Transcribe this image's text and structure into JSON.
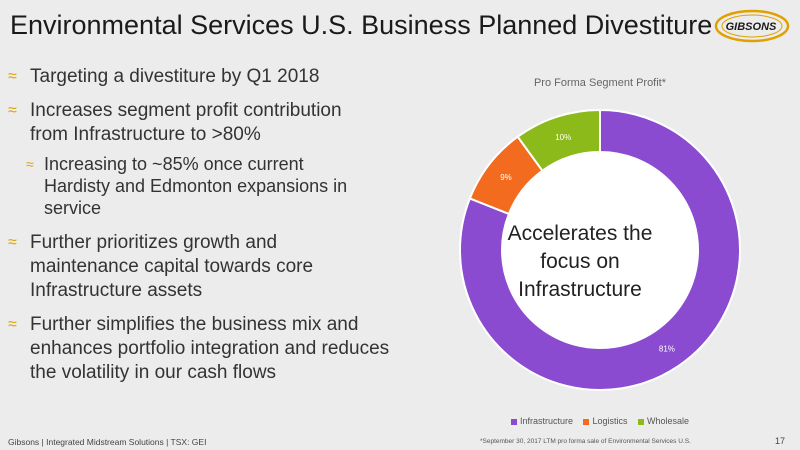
{
  "header": {
    "title": "Environmental Services U.S. Business Planned Divestiture",
    "logo_text": "GIBSONS"
  },
  "bullets": [
    {
      "level": 1,
      "marker": "≈",
      "text": "Targeting a divestiture by Q1 2018"
    },
    {
      "level": 1,
      "marker": "≈",
      "text": "Increases segment profit contribution from Infrastructure to >80%"
    },
    {
      "level": 2,
      "marker": "≈",
      "text": "Increasing to ~85% once current Hardisty and Edmonton expansions in service"
    },
    {
      "level": 1,
      "marker": "≈",
      "text": "Further prioritizes growth and maintenance capital towards core Infrastructure assets"
    },
    {
      "level": 1,
      "marker": "≈",
      "text": "Further simplifies the business mix and enhances portfolio integration and reduces the volatility in our cash flows"
    }
  ],
  "chart_data": {
    "type": "pie",
    "variant": "donut",
    "title": "Pro Forma Segment Profit*",
    "center_label": "Accelerates the focus on Infrastructure",
    "categories": [
      "Infrastructure",
      "Logistics",
      "Wholesale"
    ],
    "values": [
      81,
      9,
      10
    ],
    "data_labels": [
      "81%",
      "9%",
      "10%"
    ],
    "colors": [
      "#8a4bd0",
      "#f26b1f",
      "#8cba1a"
    ],
    "legend_position": "bottom"
  },
  "footer": {
    "left": "Gibsons | Integrated Midstream Solutions | TSX: GEI",
    "footnote": "*September 30, 2017 LTM pro forma sale of Environmental Services U.S.",
    "page_number": "17"
  }
}
